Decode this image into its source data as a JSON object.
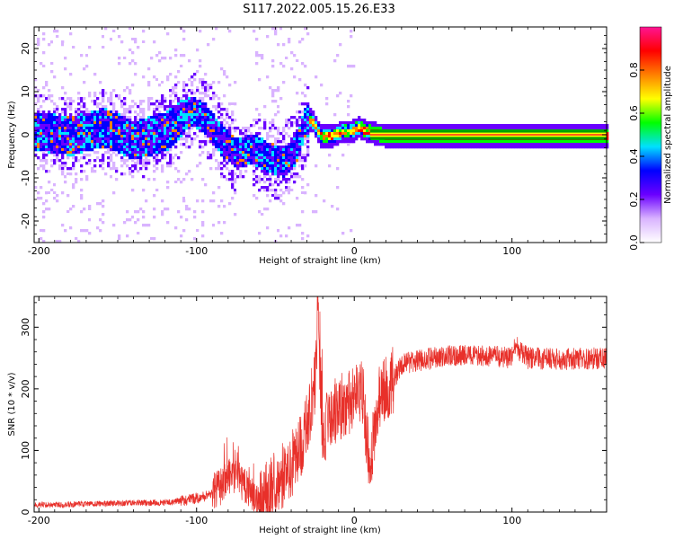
{
  "figure": {
    "title": "S117.2022.005.15.26.E33"
  },
  "chart_data": [
    {
      "type": "heatmap",
      "xlabel": "Height of straight line (km)",
      "ylabel": "Frequency (Hz)",
      "xlim": [
        -203,
        160
      ],
      "ylim": [
        -25,
        25
      ],
      "xticks": [
        -200,
        -100,
        0,
        100
      ],
      "yticks": [
        -20,
        -10,
        0,
        10,
        20
      ],
      "colorbar": {
        "label": "Normalized spectral amplitude",
        "range": [
          0,
          1
        ],
        "ticks": [
          "0.0",
          "0.2",
          "0.4",
          "0.6",
          "0.8"
        ],
        "colormap": [
          "#ffffff",
          "#d9b3ff",
          "#6a00ff",
          "#0000ff",
          "#00e0ff",
          "#00ff00",
          "#ffff00",
          "#ff8000",
          "#ff0000",
          "#ff1493"
        ]
      },
      "ridge": {
        "x": [
          -200,
          -180,
          -160,
          -140,
          -120,
          -105,
          -95,
          -85,
          -75,
          -65,
          -55,
          -45,
          -38,
          -32,
          -28,
          -22,
          -15,
          -8,
          -2,
          2,
          8,
          20,
          50,
          100,
          160
        ],
        "frequency_hz": [
          1,
          0,
          2,
          -1,
          1,
          6,
          4,
          -1,
          -4,
          -3,
          -5,
          -6,
          -3,
          3,
          4,
          0,
          0,
          1,
          1,
          2,
          1,
          0,
          0,
          0,
          0
        ]
      }
    },
    {
      "type": "line",
      "xlabel": "Height of straight line (km)",
      "ylabel": "SNR (10 * v/v)",
      "xlim": [
        -203,
        160
      ],
      "ylim": [
        0,
        350
      ],
      "xticks": [
        -200,
        -100,
        0,
        100
      ],
      "yticks": [
        0,
        100,
        200,
        300
      ],
      "color": "#e8302a",
      "series": [
        {
          "x": [
            -200,
            -180,
            -160,
            -140,
            -120,
            -105,
            -95,
            -85,
            -80,
            -75,
            -70,
            -65,
            -60,
            -55,
            -50,
            -45,
            -40,
            -35,
            -30,
            -25,
            -23,
            -20,
            -15,
            -10,
            0,
            5,
            10,
            15,
            20,
            25,
            30,
            40,
            50,
            70,
            90,
            100,
            102,
            110,
            130,
            160
          ],
          "values": [
            12,
            12,
            14,
            15,
            15,
            20,
            25,
            40,
            60,
            55,
            45,
            30,
            10,
            30,
            50,
            60,
            75,
            100,
            140,
            210,
            320,
            120,
            160,
            170,
            180,
            200,
            70,
            180,
            200,
            215,
            240,
            245,
            250,
            255,
            252,
            250,
            270,
            250,
            248,
            250
          ]
        }
      ]
    }
  ]
}
